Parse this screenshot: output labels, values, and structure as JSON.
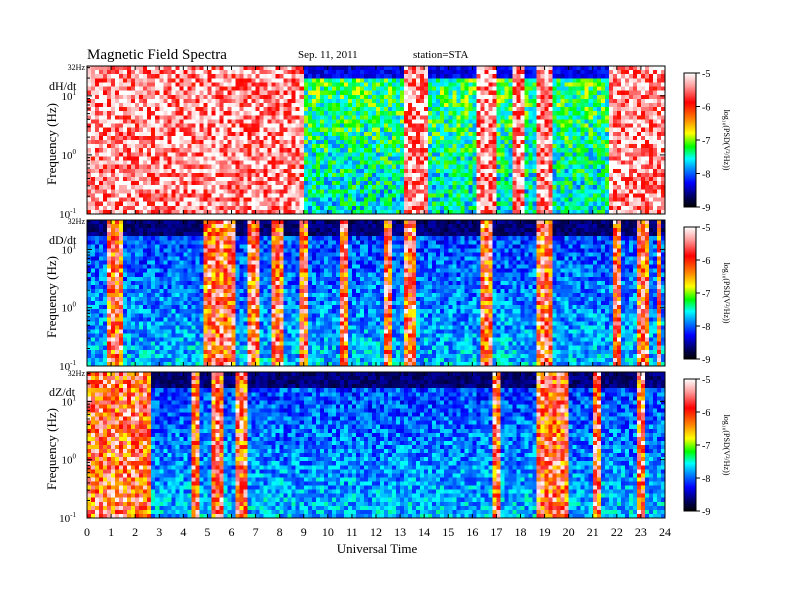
{
  "header": {
    "title": "Magnetic  Field  Spectra",
    "date": "Sep. 11, 2011",
    "station": "station=STA"
  },
  "chart_data": {
    "type": "heatmap",
    "xlabel": "Universal Time",
    "x_ticks": [
      "0",
      "1",
      "2",
      "3",
      "4",
      "5",
      "6",
      "7",
      "8",
      "9",
      "10",
      "11",
      "12",
      "13",
      "14",
      "15",
      "16",
      "17",
      "18",
      "19",
      "20",
      "21",
      "22",
      "23",
      "24"
    ],
    "xlim": [
      0,
      24
    ],
    "ylabel": "Frequency  (Hz)",
    "y_scale": "log",
    "ylim": [
      0.1,
      32
    ],
    "y_ticks": [
      {
        "value": 32,
        "label": "32Hz"
      },
      {
        "value": 10,
        "label": "10",
        "exp": "1"
      },
      {
        "value": 1,
        "label": "10",
        "exp": "0"
      },
      {
        "value": 0.1,
        "label": "10",
        "exp": "-1"
      }
    ],
    "colorbar": {
      "label": "log₁₀(PSD(V²/Hz))",
      "range": [
        -9,
        -5
      ],
      "ticks": [
        "-5",
        "-6",
        "-7",
        "-8",
        "-9"
      ],
      "colors": [
        "#ffffff",
        "#ff9999",
        "#ff0000",
        "#ff8800",
        "#ffff00",
        "#00ff00",
        "#00ffff",
        "#0088ff",
        "#0000ff",
        "#000066",
        "#000000"
      ]
    },
    "panels": [
      {
        "label": "dH/dt",
        "description_level": "high",
        "bright_bands": [
          [
            0,
            9
          ],
          [
            13.2,
            14.2
          ],
          [
            16.2,
            17
          ],
          [
            17.6,
            18.2
          ],
          [
            18.6,
            19.4
          ],
          [
            21.6,
            24
          ]
        ]
      },
      {
        "label": "dD/dt",
        "description_level": "low",
        "bright_bands": [
          [
            0.9,
            1.5
          ],
          [
            4.8,
            6.2
          ],
          [
            6.6,
            7.1
          ],
          [
            7.6,
            8.1
          ],
          [
            8.8,
            9.2
          ],
          [
            10.5,
            10.9
          ],
          [
            12.4,
            12.6
          ],
          [
            13.1,
            13.6
          ],
          [
            16.4,
            16.9
          ],
          [
            18.7,
            19.3
          ],
          [
            21.9,
            22.2
          ],
          [
            22.8,
            23.4
          ],
          [
            23.6,
            23.9
          ]
        ]
      },
      {
        "label": "dZ/dt",
        "description_level": "low",
        "bright_bands": [
          [
            0,
            2.6
          ],
          [
            4.3,
            4.6
          ],
          [
            5.2,
            5.6
          ],
          [
            6.1,
            6.7
          ],
          [
            16.9,
            17.2
          ],
          [
            18.7,
            20.0
          ],
          [
            21.0,
            21.3
          ],
          [
            22.8,
            23.1
          ]
        ]
      }
    ]
  }
}
